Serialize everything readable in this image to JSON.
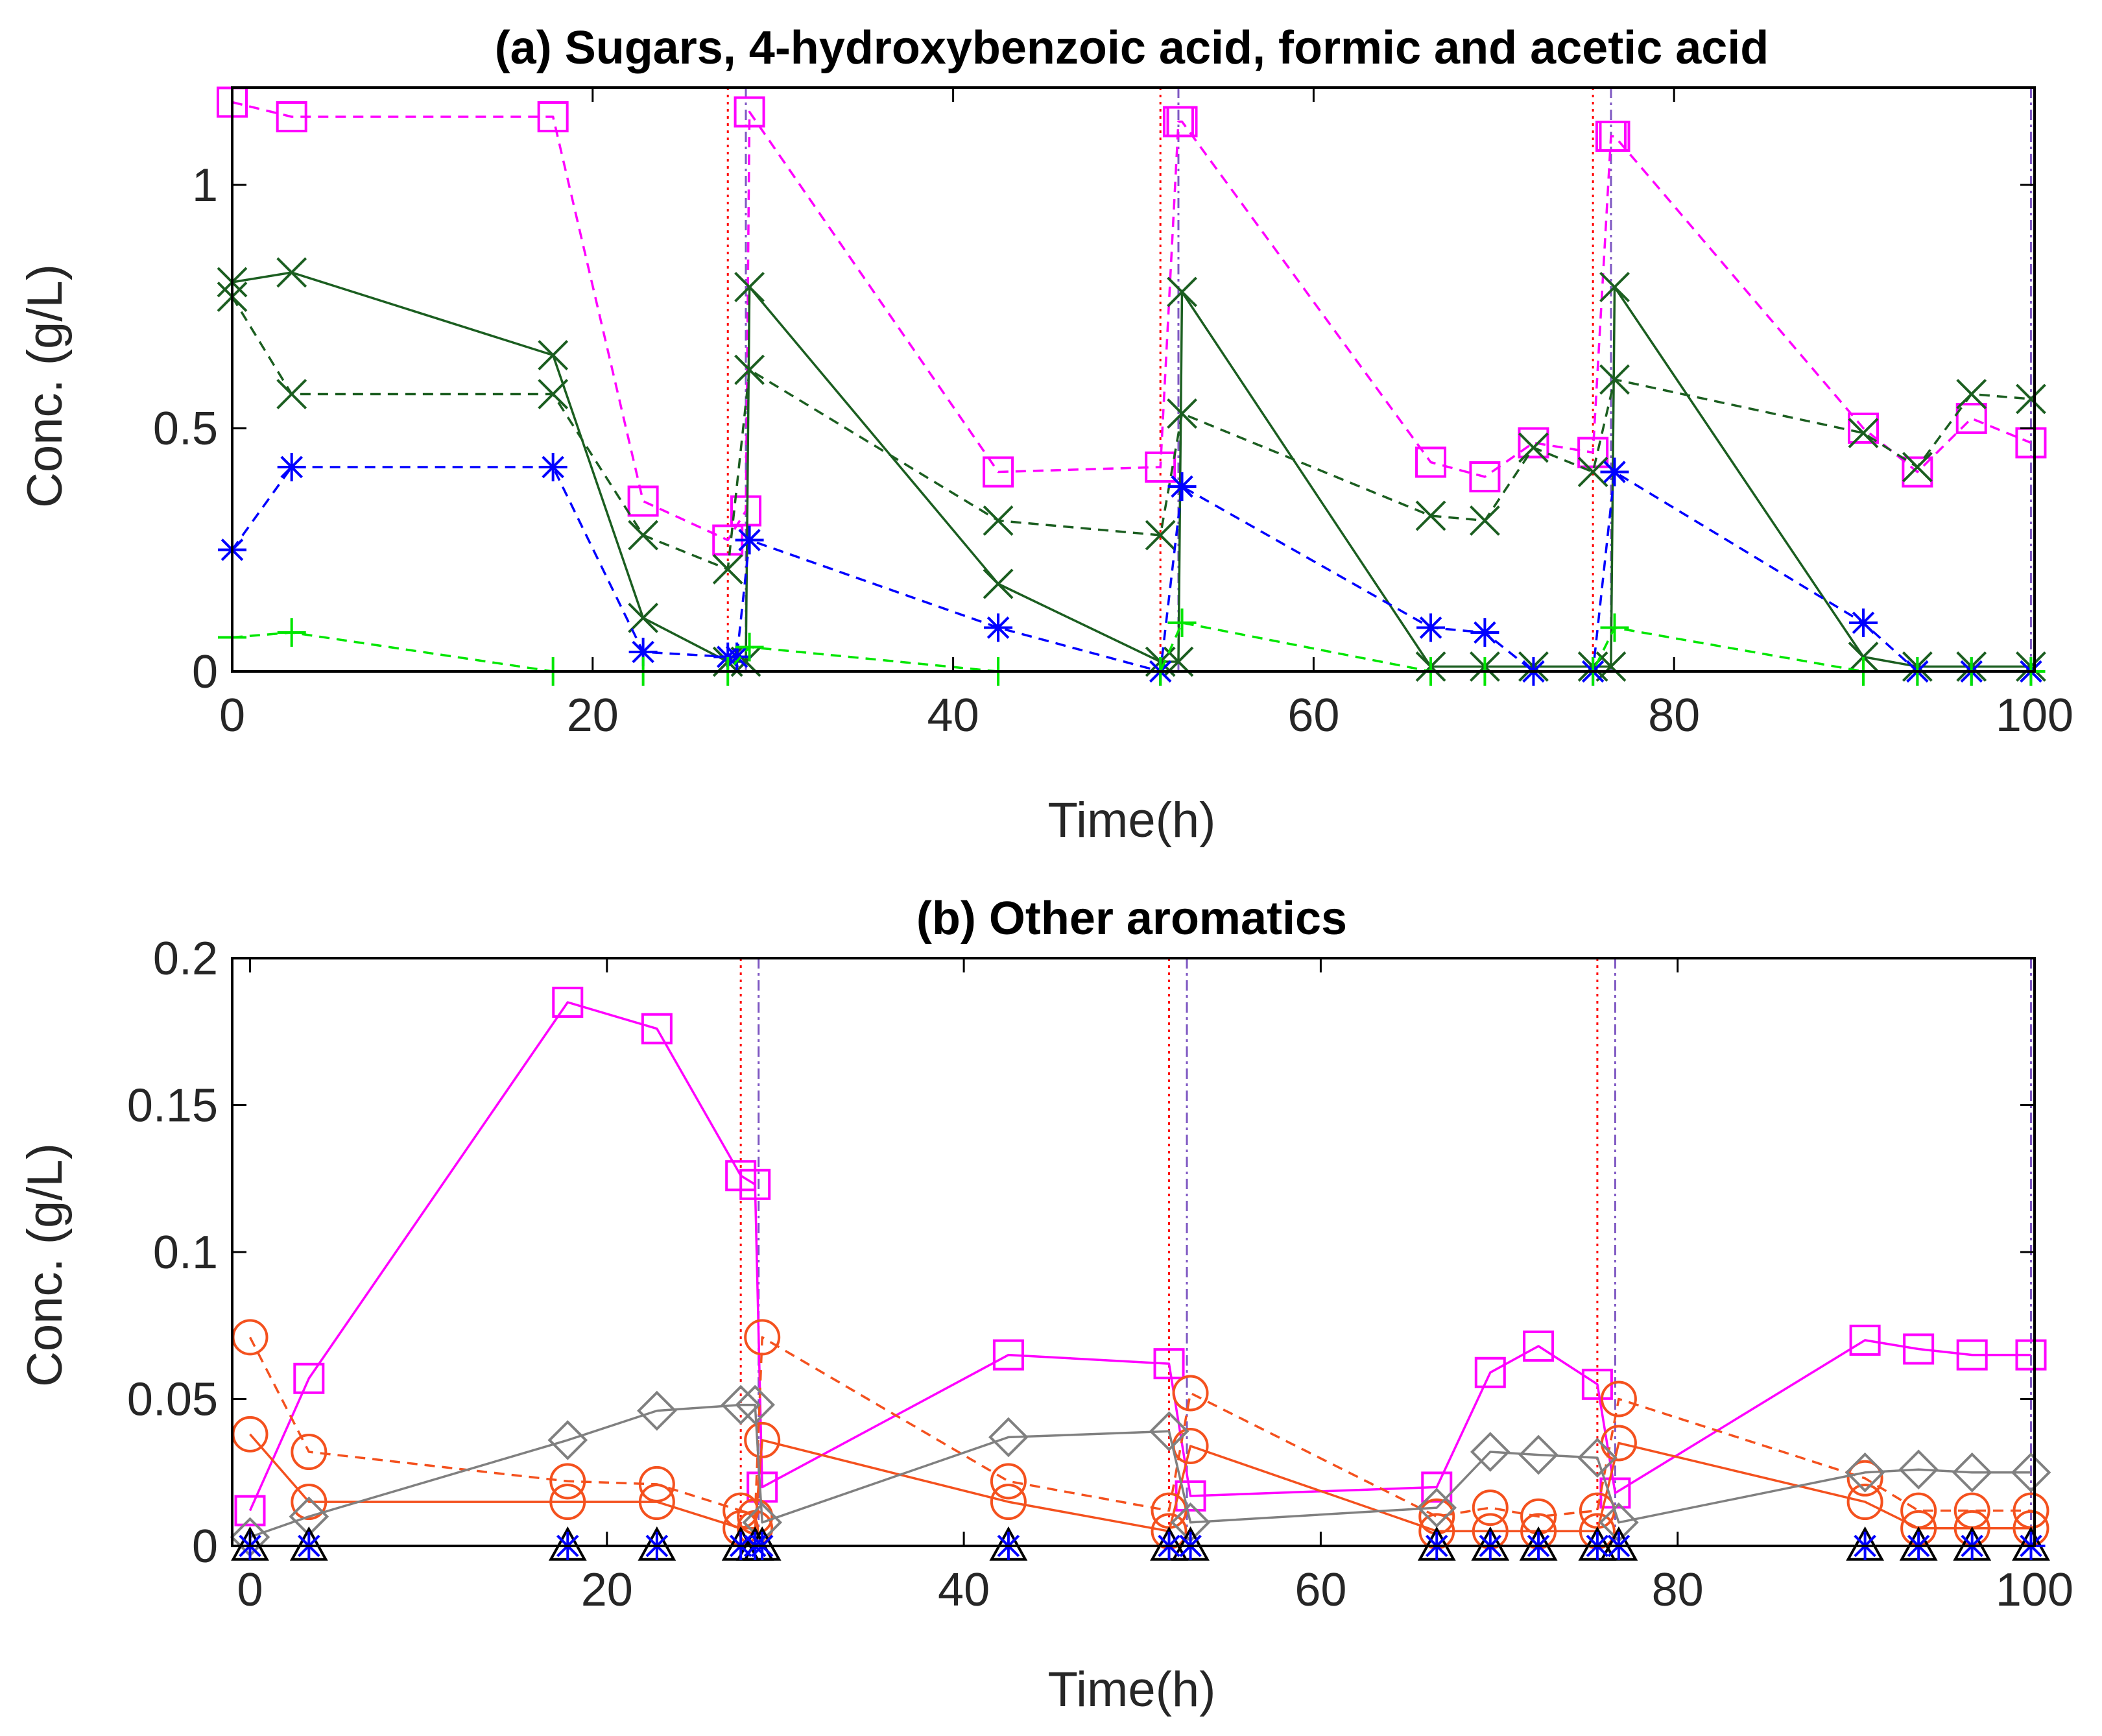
{
  "chart_data": [
    {
      "type": "line",
      "title": "(a) Sugars, 4-hydroxybenzoic acid, formic and acetic acid",
      "xlabel": "Time(h)",
      "ylabel": "Conc. (g/L)",
      "xlim": [
        0,
        100
      ],
      "ylim": [
        0,
        1.2
      ],
      "xticks": [
        0,
        20,
        40,
        60,
        80,
        100
      ],
      "yticks": [
        0,
        0.5,
        1
      ],
      "ytick_labels": [
        "0",
        "0.5",
        "1"
      ],
      "grid": false,
      "vlines": [
        {
          "x": 27.5,
          "color": "#ff0000",
          "style": "dotted"
        },
        {
          "x": 28.5,
          "color": "#7e57c2",
          "style": "dashdot"
        },
        {
          "x": 51.5,
          "color": "#ff0000",
          "style": "dotted"
        },
        {
          "x": 52.5,
          "color": "#7e57c2",
          "style": "dashdot"
        },
        {
          "x": 75.5,
          "color": "#ff0000",
          "style": "dotted"
        },
        {
          "x": 76.5,
          "color": "#7e57c2",
          "style": "dashdot"
        },
        {
          "x": 99.8,
          "color": "#7e57c2",
          "style": "dashdot"
        }
      ],
      "series": [
        {
          "color": "#ff00ff",
          "line": "dashed",
          "marker": "square",
          "x": [
            0,
            3.3,
            17.8,
            22.8,
            27.5,
            28.5,
            28.7,
            42.5,
            51.5,
            52.5,
            52.7,
            66.5,
            69.5,
            72.2,
            75.5,
            76.5,
            76.7,
            90.5,
            93.5,
            96.5,
            99.8
          ],
          "y": [
            1.17,
            1.14,
            1.14,
            0.35,
            0.27,
            0.33,
            1.15,
            0.41,
            0.42,
            1.13,
            1.13,
            0.43,
            0.4,
            0.47,
            0.45,
            1.1,
            1.1,
            0.5,
            0.41,
            0.52,
            0.47
          ]
        },
        {
          "color": "#1b5e20",
          "line": "solid",
          "marker": "x",
          "x": [
            0,
            3.3,
            17.8,
            22.8,
            27.5,
            28.5,
            28.7,
            42.5,
            51.5,
            52.5,
            52.7,
            66.5,
            69.5,
            72.2,
            75.5,
            76.5,
            76.7,
            90.5,
            93.5,
            96.5,
            99.8
          ],
          "y": [
            0.8,
            0.82,
            0.65,
            0.11,
            0.02,
            0.02,
            0.79,
            0.18,
            0.02,
            0.02,
            0.78,
            0.01,
            0.01,
            0.01,
            0.01,
            0.01,
            0.79,
            0.03,
            0.01,
            0.01,
            0.01
          ]
        },
        {
          "color": "#1b5e20",
          "line": "dashed",
          "marker": "x",
          "x": [
            0,
            3.3,
            17.8,
            22.8,
            27.5,
            28.7,
            42.5,
            51.5,
            52.7,
            66.5,
            69.5,
            72.2,
            75.5,
            76.7,
            90.5,
            93.5,
            96.5,
            99.8
          ],
          "y": [
            0.77,
            0.57,
            0.57,
            0.28,
            0.21,
            0.62,
            0.31,
            0.28,
            0.53,
            0.32,
            0.31,
            0.46,
            0.41,
            0.6,
            0.49,
            0.42,
            0.57,
            0.56
          ]
        },
        {
          "color": "#0000ff",
          "line": "dashed",
          "marker": "asterisk",
          "x": [
            0,
            3.3,
            17.8,
            22.8,
            27.5,
            28.0,
            28.7,
            42.5,
            51.5,
            52.7,
            66.5,
            69.5,
            72.2,
            75.5,
            76.7,
            90.5,
            93.5,
            96.5,
            99.8
          ],
          "y": [
            0.25,
            0.42,
            0.42,
            0.04,
            0.03,
            0.03,
            0.27,
            0.09,
            0.0,
            0.38,
            0.09,
            0.08,
            0.0,
            0.0,
            0.41,
            0.1,
            0.0,
            0.0,
            0.0
          ]
        },
        {
          "color": "#00e600",
          "line": "dashed",
          "marker": "plus",
          "x": [
            0,
            3.3,
            17.8,
            22.8,
            27.5,
            28.7,
            42.5,
            51.5,
            52.7,
            66.5,
            69.5,
            75.5,
            76.7,
            90.5,
            93.5,
            96.5,
            99.8
          ],
          "y": [
            0.07,
            0.08,
            0.0,
            0.0,
            0.0,
            0.05,
            0.0,
            0.0,
            0.1,
            0.0,
            0.0,
            0.0,
            0.09,
            0.0,
            0.0,
            0.0,
            0.0
          ]
        }
      ]
    },
    {
      "type": "line",
      "title": "(b) Other aromatics",
      "xlabel": "Time(h)",
      "ylabel": "Conc. (g/L)",
      "xlim": [
        -1,
        100
      ],
      "ylim": [
        0,
        0.2
      ],
      "xticks": [
        0,
        20,
        40,
        60,
        80,
        100
      ],
      "yticks": [
        0,
        0.05,
        0.1,
        0.15,
        0.2
      ],
      "ytick_labels": [
        "0",
        "0.05",
        "0.1",
        "0.15",
        "0.2"
      ],
      "grid": false,
      "vlines": [
        {
          "x": 27.5,
          "color": "#ff0000",
          "style": "dotted"
        },
        {
          "x": 28.5,
          "color": "#7e57c2",
          "style": "dashdot"
        },
        {
          "x": 51.5,
          "color": "#ff0000",
          "style": "dotted"
        },
        {
          "x": 52.5,
          "color": "#7e57c2",
          "style": "dashdot"
        },
        {
          "x": 75.5,
          "color": "#ff0000",
          "style": "dotted"
        },
        {
          "x": 76.5,
          "color": "#7e57c2",
          "style": "dashdot"
        },
        {
          "x": 99.8,
          "color": "#7e57c2",
          "style": "dashdot"
        }
      ],
      "series": [
        {
          "color": "#ff00ff",
          "line": "solid",
          "marker": "square",
          "x": [
            0,
            3.3,
            17.8,
            22.8,
            27.5,
            28.3,
            28.7,
            42.5,
            51.5,
            52.7,
            66.5,
            69.5,
            72.2,
            75.5,
            76.5,
            90.5,
            93.5,
            96.5,
            99.8
          ],
          "y": [
            0.012,
            0.057,
            0.185,
            0.176,
            0.126,
            0.123,
            0.02,
            0.065,
            0.062,
            0.017,
            0.02,
            0.059,
            0.068,
            0.055,
            0.018,
            0.07,
            0.067,
            0.065,
            0.065
          ]
        },
        {
          "color": "#f4511e",
          "line": "dashed",
          "marker": "circle",
          "x": [
            0,
            3.3,
            17.8,
            22.8,
            27.5,
            28.3,
            28.7,
            42.5,
            51.5,
            52.7,
            66.5,
            69.5,
            72.2,
            75.5,
            76.7,
            90.5,
            93.5,
            96.5,
            99.8
          ],
          "y": [
            0.071,
            0.032,
            0.022,
            0.021,
            0.012,
            0.01,
            0.071,
            0.022,
            0.012,
            0.052,
            0.01,
            0.013,
            0.01,
            0.012,
            0.05,
            0.023,
            0.012,
            0.012,
            0.012
          ]
        },
        {
          "color": "#f4511e",
          "line": "solid",
          "marker": "circle",
          "x": [
            0,
            3.3,
            17.8,
            22.8,
            27.5,
            28.3,
            28.7,
            42.5,
            51.5,
            52.7,
            66.5,
            69.5,
            72.2,
            75.5,
            76.7,
            90.5,
            93.5,
            96.5,
            99.8
          ],
          "y": [
            0.038,
            0.015,
            0.015,
            0.015,
            0.006,
            0.006,
            0.036,
            0.015,
            0.005,
            0.034,
            0.005,
            0.005,
            0.005,
            0.005,
            0.035,
            0.015,
            0.006,
            0.006,
            0.006
          ]
        },
        {
          "color": "#808080",
          "line": "solid",
          "marker": "diamond",
          "x": [
            0,
            3.3,
            17.8,
            22.8,
            27.5,
            28.3,
            28.7,
            42.5,
            51.5,
            52.7,
            66.5,
            69.5,
            72.2,
            75.5,
            76.7,
            90.5,
            93.5,
            96.5,
            99.8
          ],
          "y": [
            0.003,
            0.01,
            0.036,
            0.046,
            0.048,
            0.048,
            0.008,
            0.037,
            0.039,
            0.008,
            0.013,
            0.032,
            0.031,
            0.03,
            0.008,
            0.025,
            0.026,
            0.025,
            0.025
          ]
        },
        {
          "color": "#000000",
          "line": "none",
          "marker": "triangle",
          "x": [
            0,
            3.3,
            17.8,
            22.8,
            27.5,
            28.3,
            28.7,
            42.5,
            51.5,
            52.7,
            66.5,
            69.5,
            72.2,
            75.5,
            76.7,
            90.5,
            93.5,
            96.5,
            99.8
          ],
          "y": [
            0,
            0,
            0,
            0,
            0,
            0,
            0,
            0,
            0,
            0,
            0,
            0,
            0,
            0,
            0,
            0,
            0,
            0,
            0
          ]
        },
        {
          "color": "#0000ff",
          "line": "none",
          "marker": "asterisk",
          "x": [
            0,
            3.3,
            17.8,
            22.8,
            27.5,
            28.3,
            28.7,
            42.5,
            51.5,
            52.7,
            66.5,
            69.5,
            72.2,
            75.5,
            76.7,
            90.5,
            93.5,
            96.5,
            99.8
          ],
          "y": [
            0,
            0,
            0,
            0,
            0,
            0,
            0,
            0,
            0,
            0,
            0,
            0,
            0,
            0,
            0,
            0,
            0,
            0,
            0
          ]
        }
      ]
    }
  ]
}
